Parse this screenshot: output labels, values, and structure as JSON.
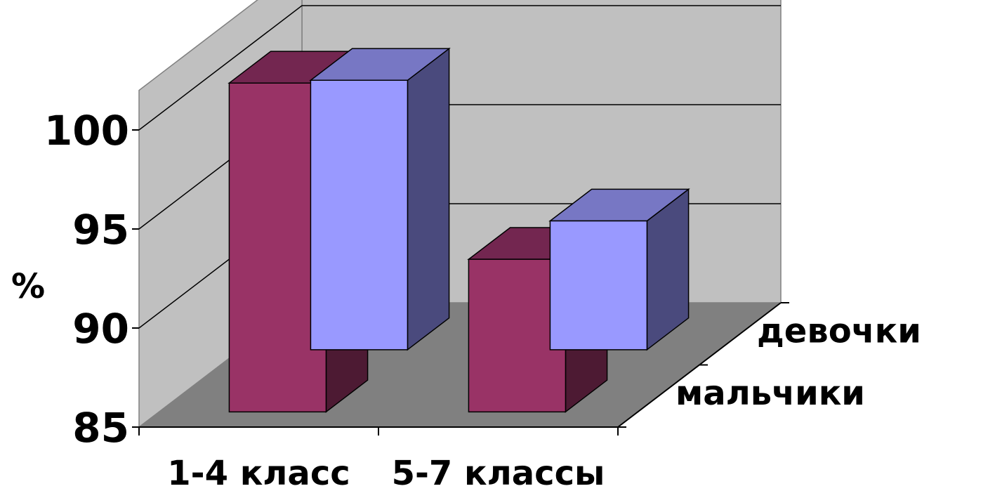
{
  "chart_data": {
    "type": "bar",
    "variant": "3d-column-depth",
    "categories": [
      "1-4 класс",
      "5-7 классы"
    ],
    "series": [
      {
        "name": "девочки",
        "values": [
          98.6,
          91.5
        ],
        "colors": {
          "front": "#9999ff",
          "top": "#7777c4",
          "side": "#4a4a7d"
        }
      },
      {
        "name": "мальчики",
        "values": [
          101.6,
          92.7
        ],
        "colors": {
          "front": "#993366",
          "top": "#732650",
          "side": "#4d1a33"
        }
      }
    ],
    "ylabel": "%",
    "ylim": [
      85,
      102
    ],
    "yticks": [
      85,
      90,
      95,
      100
    ],
    "grid": true,
    "colors": {
      "back_wall": "#c0c0c0",
      "floor": "#808080",
      "grid": "#000000"
    }
  }
}
